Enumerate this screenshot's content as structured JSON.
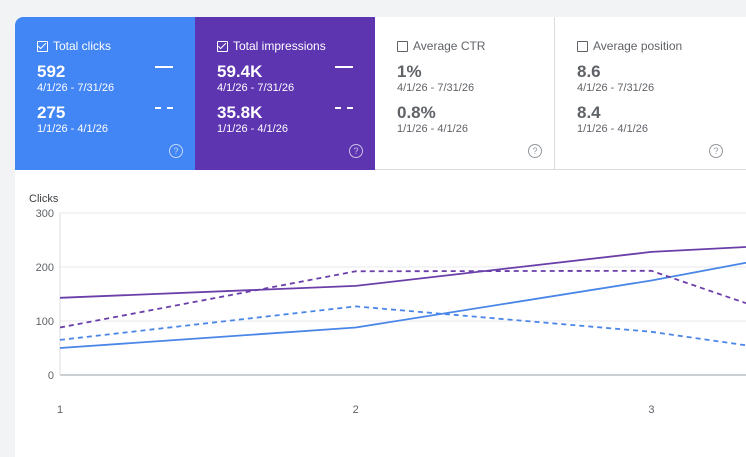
{
  "cards": [
    {
      "label": "Total clicks",
      "checked": true,
      "current_value": "592",
      "current_range": "4/1/26 - 7/31/26",
      "previous_value": "275",
      "previous_range": "1/1/26 - 4/1/26",
      "help": "?"
    },
    {
      "label": "Total impressions",
      "checked": true,
      "current_value": "59.4K",
      "current_range": "4/1/26 - 7/31/26",
      "previous_value": "35.8K",
      "previous_range": "1/1/26 - 4/1/26",
      "help": "?"
    },
    {
      "label": "Average CTR",
      "checked": false,
      "current_value": "1%",
      "current_range": "4/1/26 - 7/31/26",
      "previous_value": "0.8%",
      "previous_range": "1/1/26 - 4/1/26",
      "help": "?"
    },
    {
      "label": "Average position",
      "checked": false,
      "current_value": "8.6",
      "current_range": "4/1/26 - 7/31/26",
      "previous_value": "8.4",
      "previous_range": "1/1/26 - 4/1/26",
      "help": "?"
    }
  ],
  "chart_data": {
    "type": "line",
    "ylabel": "Clicks",
    "ylim": [
      0,
      300
    ],
    "yticks": [
      0,
      100,
      200,
      300
    ],
    "x": [
      1,
      2,
      3
    ],
    "xlim": [
      1,
      3.32
    ],
    "grid": true,
    "series": [
      {
        "metric": "clicks",
        "period": "current",
        "style": "solid",
        "color": "#4a86e8",
        "x": [
          1,
          2,
          3,
          3.32
        ],
        "values": [
          50,
          88,
          175,
          208
        ]
      },
      {
        "metric": "clicks",
        "period": "previous",
        "style": "dashed",
        "color": "#4a86e8",
        "x": [
          1,
          2,
          3,
          3.32
        ],
        "values": [
          65,
          127,
          80,
          55
        ]
      },
      {
        "metric": "impressions",
        "period": "current",
        "style": "solid",
        "color": "#6a3fa9",
        "x": [
          1,
          2,
          3,
          3.32
        ],
        "values": [
          143,
          165,
          228,
          237
        ]
      },
      {
        "metric": "impressions",
        "period": "previous",
        "style": "dashed",
        "color": "#6a3fa9",
        "x": [
          1,
          2,
          3,
          3.32
        ],
        "values": [
          88,
          192,
          193,
          133
        ]
      }
    ]
  }
}
